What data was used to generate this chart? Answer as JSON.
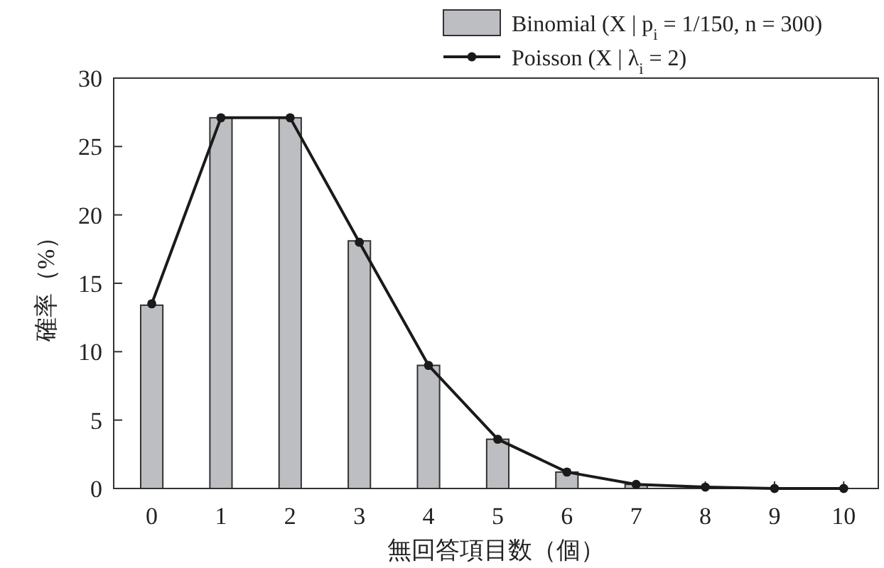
{
  "chart_data": {
    "type": "bar",
    "xlabel": "無回答項目数（個）",
    "ylabel": "確率（%）",
    "categories": [
      "0",
      "1",
      "2",
      "3",
      "4",
      "5",
      "6",
      "7",
      "8",
      "9",
      "10"
    ],
    "series": [
      {
        "name": "Binomial (X | p$_{i}$ = 1/150, n = 300)",
        "color": "#bcbec2",
        "values": [
          13.4,
          27.1,
          27.1,
          18.1,
          9.0,
          3.6,
          1.2,
          0.3,
          0.1,
          0,
          0
        ]
      },
      {
        "name": "Poisson (X | λ$_{i}$ = 2)",
        "type": "line",
        "color": "#1a1a1a",
        "marker": "circle",
        "values": [
          13.5,
          27.1,
          27.1,
          18.0,
          9.0,
          3.6,
          1.2,
          0.3,
          0.1,
          0,
          0
        ]
      }
    ],
    "ylim": [
      0,
      30
    ],
    "yticks": [
      0,
      5,
      10,
      15,
      20,
      25,
      30
    ],
    "grid": false,
    "legend": "top right"
  }
}
